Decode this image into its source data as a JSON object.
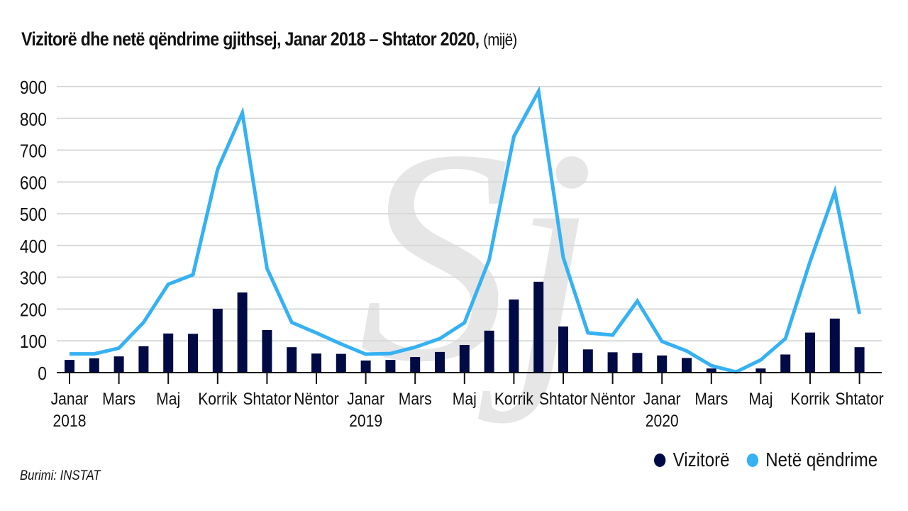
{
  "header": {
    "title": "Vizitorë dhe netë qëndrime gjithsej, Janar 2018 – Shtator 2020,",
    "unit": "(mijë)"
  },
  "source": "Burimi: INSTAT",
  "colors": {
    "visitors": "#000a45",
    "nights": "#35b1f4",
    "grid": "#d9d9d9",
    "axis": "#111111",
    "watermark": "#e6e6e6"
  },
  "legend": [
    {
      "label": "Vizitorë",
      "color": "#000a45"
    },
    {
      "label": "Netë qëndrime",
      "color": "#35b1f4"
    }
  ],
  "chart_data": {
    "type": "bar",
    "title": "Vizitorë dhe netë qëndrime gjithsej, Janar 2018 – Shtator 2020, (mijë)",
    "xlabel": "",
    "ylabel": "mijë",
    "ylim": [
      0,
      900
    ],
    "yticks": [
      0,
      100,
      200,
      300,
      400,
      500,
      600,
      700,
      800,
      900
    ],
    "grid": true,
    "legend_position": "bottom-right",
    "months": [
      "Jan 2018",
      "Feb 2018",
      "Mar 2018",
      "Apr 2018",
      "May 2018",
      "Jun 2018",
      "Jul 2018",
      "Aug 2018",
      "Sep 2018",
      "Oct 2018",
      "Nov 2018",
      "Dec 2018",
      "Jan 2019",
      "Feb 2019",
      "Mar 2019",
      "Apr 2019",
      "May 2019",
      "Jun 2019",
      "Jul 2019",
      "Aug 2019",
      "Sep 2019",
      "Oct 2019",
      "Nov 2019",
      "Dec 2019",
      "Jan 2020",
      "Feb 2020",
      "Mar 2020",
      "Apr 2020",
      "May 2020",
      "Jun 2020",
      "Jul 2020",
      "Aug 2020",
      "Sep 2020"
    ],
    "x_tick_labels": [
      {
        "index": 0,
        "label": "Janar",
        "year": "2018"
      },
      {
        "index": 2,
        "label": "Mars",
        "year": ""
      },
      {
        "index": 4,
        "label": "Maj",
        "year": ""
      },
      {
        "index": 6,
        "label": "Korrik",
        "year": ""
      },
      {
        "index": 8,
        "label": "Shtator",
        "year": ""
      },
      {
        "index": 10,
        "label": "Nëntor",
        "year": ""
      },
      {
        "index": 12,
        "label": "Janar",
        "year": "2019"
      },
      {
        "index": 14,
        "label": "Mars",
        "year": ""
      },
      {
        "index": 16,
        "label": "Maj",
        "year": ""
      },
      {
        "index": 18,
        "label": "Korrik",
        "year": ""
      },
      {
        "index": 20,
        "label": "Shtator",
        "year": ""
      },
      {
        "index": 22,
        "label": "Nëntor",
        "year": ""
      },
      {
        "index": 24,
        "label": "Janar",
        "year": "2020"
      },
      {
        "index": 26,
        "label": "Mars",
        "year": ""
      },
      {
        "index": 28,
        "label": "Maj",
        "year": ""
      },
      {
        "index": 30,
        "label": "Korrik",
        "year": ""
      },
      {
        "index": 32,
        "label": "Shtator",
        "year": ""
      }
    ],
    "series": [
      {
        "name": "Vizitorë",
        "type": "bar",
        "values": [
          40,
          45,
          51,
          83,
          123,
          122,
          201,
          252,
          134,
          80,
          60,
          59,
          38,
          40,
          49,
          65,
          87,
          132,
          230,
          286,
          145,
          73,
          64,
          62,
          54,
          46,
          13,
          0,
          13,
          57,
          126,
          170,
          80
        ]
      },
      {
        "name": "Netë qëndrime",
        "type": "line",
        "values": [
          59,
          59,
          77,
          158,
          278,
          308,
          640,
          817,
          328,
          158,
          125,
          90,
          58,
          60,
          80,
          107,
          157,
          355,
          743,
          885,
          362,
          125,
          118,
          225,
          98,
          68,
          22,
          2,
          40,
          107,
          350,
          569,
          185
        ]
      }
    ]
  }
}
